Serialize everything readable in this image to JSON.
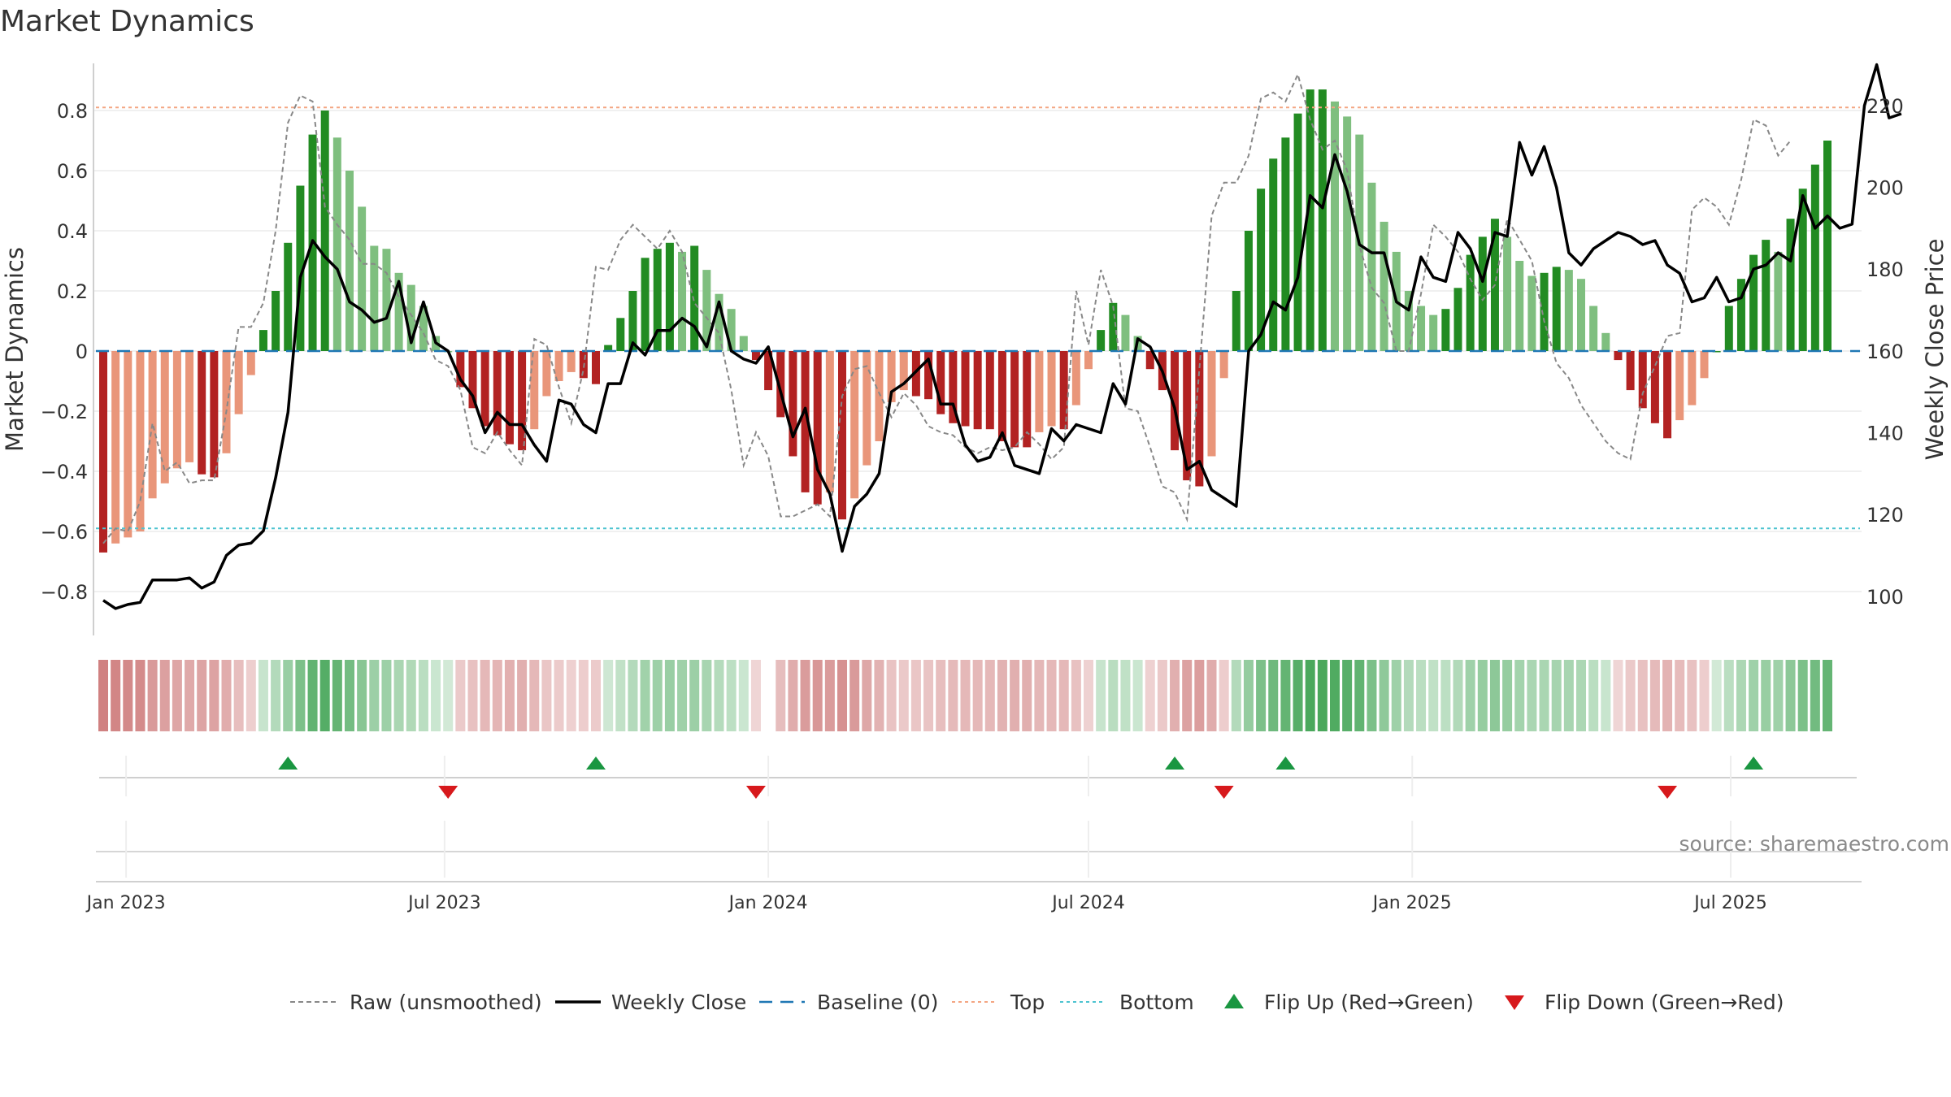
{
  "chart_data": {
    "type": "bar",
    "title": "Market Dynamics",
    "ylabel_left": "Market Dynamics",
    "ylabel_right": "Weekly Close Price",
    "xlabel": "",
    "ylim_left": [
      -0.95,
      0.95
    ],
    "ylim_right": [
      95,
      225
    ],
    "left_ticks": [
      "0.8",
      "0.6",
      "0.4",
      "0.2",
      "0",
      "−0.2",
      "−0.4",
      "−0.6",
      "−0.8"
    ],
    "right_ticks": [
      "220",
      "200",
      "180",
      "160",
      "140",
      "120",
      "100"
    ],
    "x_start": "2022-12-19",
    "x_ticks": [
      "Jan 2023",
      "Jul 2023",
      "Jan 2024",
      "Jul 2024",
      "Jan 2025",
      "Jul 2025"
    ],
    "top_level": 0.81,
    "bottom_level": -0.59,
    "baseline": 0,
    "grid": true,
    "legend_position": "bottom-center",
    "source_text": "source: sharemaestro.com",
    "bars": [
      -0.67,
      -0.64,
      -0.62,
      -0.6,
      -0.49,
      -0.44,
      -0.39,
      -0.37,
      -0.41,
      -0.42,
      -0.34,
      -0.21,
      -0.08,
      0.07,
      0.2,
      0.36,
      0.55,
      0.72,
      0.8,
      0.71,
      0.6,
      0.48,
      0.35,
      0.34,
      0.26,
      0.22,
      0.15,
      0.05,
      0.0,
      -0.12,
      -0.19,
      -0.25,
      -0.28,
      -0.31,
      -0.33,
      -0.26,
      -0.15,
      -0.1,
      -0.07,
      -0.09,
      -0.11,
      0.02,
      0.11,
      0.2,
      0.31,
      0.34,
      0.36,
      0.33,
      0.35,
      0.27,
      0.19,
      0.14,
      0.05,
      -0.03,
      -0.13,
      -0.22,
      -0.35,
      -0.47,
      -0.51,
      -0.47,
      -0.56,
      -0.49,
      -0.38,
      -0.3,
      -0.17,
      -0.13,
      -0.15,
      -0.16,
      -0.21,
      -0.24,
      -0.25,
      -0.26,
      -0.26,
      -0.3,
      -0.32,
      -0.32,
      -0.27,
      -0.25,
      -0.26,
      -0.18,
      -0.06,
      0.07,
      0.16,
      0.12,
      0.05,
      -0.06,
      -0.13,
      -0.33,
      -0.43,
      -0.45,
      -0.35,
      -0.09,
      0.2,
      0.4,
      0.54,
      0.64,
      0.71,
      0.79,
      0.87,
      0.87,
      0.83,
      0.78,
      0.72,
      0.56,
      0.43,
      0.33,
      0.2,
      0.15,
      0.12,
      0.14,
      0.21,
      0.32,
      0.38,
      0.44,
      0.38,
      0.3,
      0.25,
      0.26,
      0.28,
      0.27,
      0.24,
      0.15,
      0.06,
      -0.03,
      -0.13,
      -0.19,
      -0.24,
      -0.29,
      -0.23,
      -0.18,
      -0.09,
      0.0,
      0.15,
      0.24,
      0.32,
      0.37,
      0.33,
      0.44,
      0.54,
      0.62,
      0.7
    ],
    "raw": [
      -0.64,
      -0.59,
      -0.6,
      -0.5,
      -0.24,
      -0.4,
      -0.37,
      -0.44,
      -0.43,
      -0.43,
      -0.2,
      0.08,
      0.08,
      0.16,
      0.4,
      0.76,
      0.85,
      0.83,
      0.48,
      0.42,
      0.37,
      0.29,
      0.29,
      0.26,
      0.18,
      0.12,
      0.06,
      -0.03,
      -0.05,
      -0.13,
      -0.32,
      -0.34,
      -0.27,
      -0.33,
      -0.38,
      0.04,
      0.02,
      -0.12,
      -0.24,
      -0.06,
      0.28,
      0.27,
      0.37,
      0.42,
      0.38,
      0.34,
      0.4,
      0.33,
      0.16,
      0.11,
      0.06,
      -0.13,
      -0.38,
      -0.27,
      -0.35,
      -0.55,
      -0.55,
      -0.53,
      -0.51,
      -0.55,
      -0.15,
      -0.06,
      -0.05,
      -0.14,
      -0.22,
      -0.14,
      -0.18,
      -0.25,
      -0.27,
      -0.28,
      -0.32,
      -0.34,
      -0.32,
      -0.33,
      -0.32,
      -0.27,
      -0.31,
      -0.36,
      -0.32,
      0.2,
      0.02,
      0.27,
      0.15,
      -0.19,
      -0.2,
      -0.32,
      -0.45,
      -0.47,
      -0.56,
      -0.06,
      0.45,
      0.56,
      0.56,
      0.65,
      0.84,
      0.86,
      0.83,
      0.92,
      0.77,
      0.67,
      0.7,
      0.6,
      0.35,
      0.21,
      0.16,
      0.0,
      0.0,
      0.19,
      0.42,
      0.38,
      0.33,
      0.24,
      0.17,
      0.22,
      0.44,
      0.37,
      0.3,
      0.1,
      -0.04,
      -0.09,
      -0.18,
      -0.24,
      -0.3,
      -0.34,
      -0.36,
      -0.14,
      -0.05,
      0.05,
      0.06,
      0.47,
      0.51,
      0.48,
      0.42,
      0.57,
      0.77,
      0.75,
      0.65,
      0.7
    ],
    "close": [
      99,
      97,
      98,
      98.5,
      104,
      104,
      104,
      104.5,
      102,
      103.5,
      110,
      112.5,
      113,
      116,
      129,
      145,
      178,
      187,
      183,
      180,
      172,
      170,
      167,
      168,
      177,
      162,
      172,
      162,
      160,
      153,
      149,
      140,
      145,
      142,
      142,
      137,
      133,
      148,
      147,
      142,
      140,
      152,
      152,
      162,
      159,
      165,
      165,
      168,
      166,
      161,
      172,
      160,
      158,
      157,
      161,
      150,
      139,
      146,
      131,
      125,
      111,
      122,
      125,
      130,
      150,
      152,
      155,
      158,
      147,
      147,
      137,
      133,
      134,
      140,
      132,
      131,
      130,
      141,
      138,
      142,
      141,
      140,
      152,
      147,
      163,
      161,
      155,
      146,
      131,
      133,
      126,
      124,
      122,
      160,
      164,
      172,
      170,
      178,
      198,
      195,
      208,
      199,
      186,
      184,
      184,
      172,
      170,
      183,
      178,
      177,
      189,
      185,
      177,
      189,
      188,
      211,
      203,
      210,
      200,
      184,
      181,
      185,
      187,
      189,
      188,
      186,
      187,
      181,
      179,
      172,
      173,
      178,
      172,
      173,
      180,
      181,
      184,
      182,
      198,
      190,
      193,
      190,
      191,
      220,
      230,
      217,
      218
    ]
  },
  "legend": [
    {
      "label": "Raw (unsmoothed)",
      "style": "dashed-gray"
    },
    {
      "label": "Weekly Close",
      "style": "solid-black"
    },
    {
      "label": "Baseline (0)",
      "style": "dashed-blue"
    },
    {
      "label": "Top",
      "style": "dotted-orange"
    },
    {
      "label": "Bottom",
      "style": "dotted-cyan"
    },
    {
      "label": "Flip Up (Red→Green)",
      "style": "triangle-up-green"
    },
    {
      "label": "Flip Down (Green→Red)",
      "style": "triangle-down-red"
    }
  ],
  "flips_up": [
    "2023-04-03",
    "2023-09-25",
    "2024-08-19",
    "2024-10-21",
    "2025-07-14"
  ],
  "flips_down": [
    "2023-07-03",
    "2023-12-25",
    "2024-09-16",
    "2025-05-26"
  ],
  "colors": {
    "strong_green": "#228b22",
    "light_green": "#7fbf7f",
    "strong_red": "#b22222",
    "light_red": "#e9967a",
    "close_line": "#000000",
    "raw_line": "#888888",
    "baseline": "#1f77b4",
    "top": "#f4a582",
    "bottom": "#4dc3d0",
    "flip_up": "#1a9641",
    "flip_down": "#d7191c",
    "source_text": "#8a8a8a"
  }
}
